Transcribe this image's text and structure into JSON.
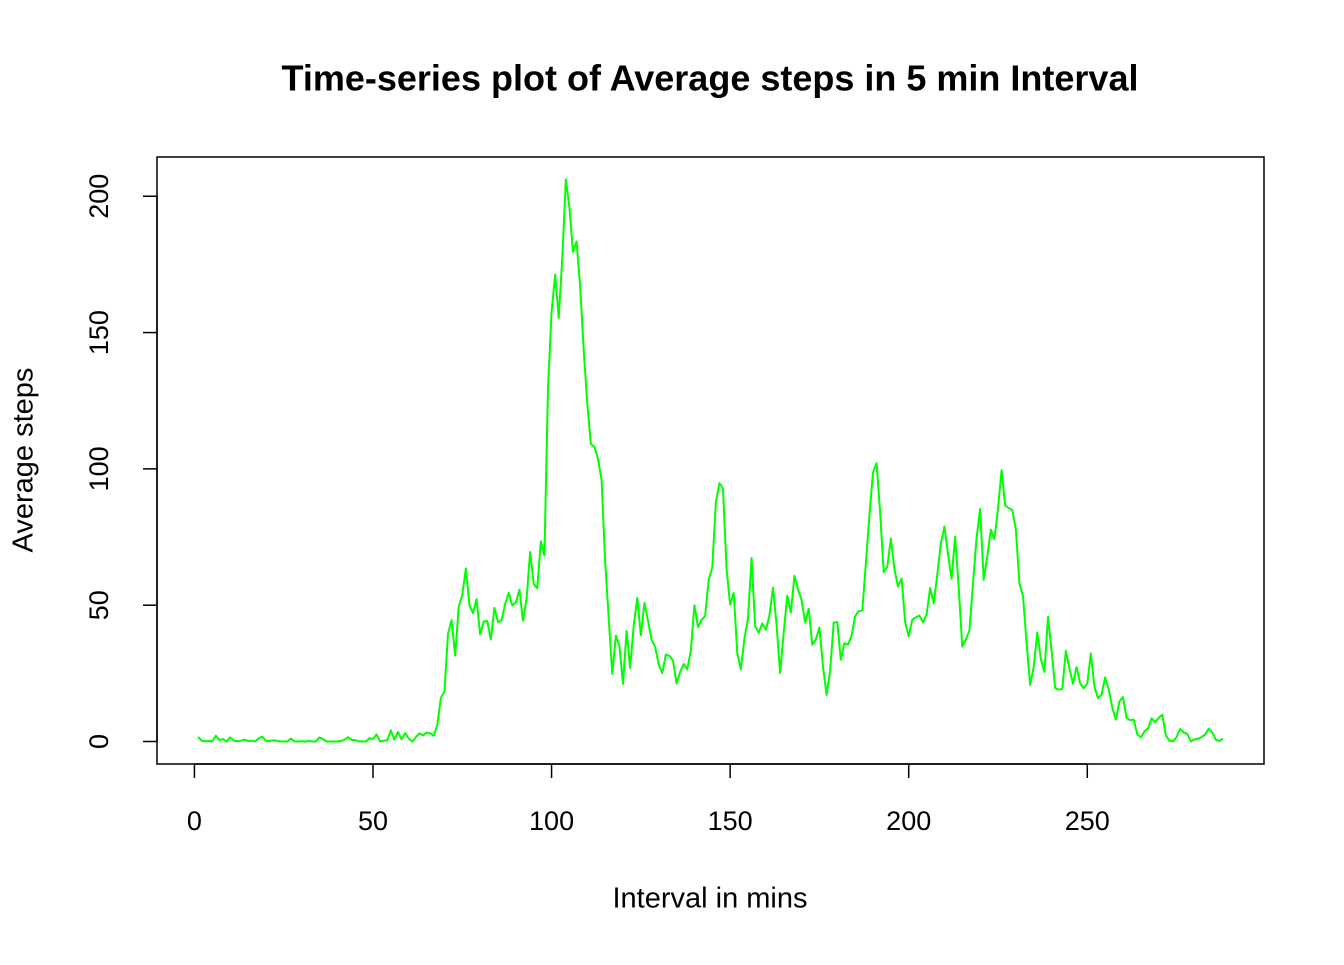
{
  "chart_data": {
    "type": "line",
    "title": "Time-series plot of Average steps in 5 min Interval",
    "x_label": "Interval in mins",
    "y_label": "Average steps",
    "color": "#00ff00",
    "grid": false,
    "xlim": [
      -10.48,
      299.48
    ],
    "ylim": [
      -8.25,
      214.4
    ],
    "xticks": [
      0,
      50,
      100,
      150,
      200,
      250
    ],
    "yticks": [
      0,
      50,
      100,
      150,
      200
    ],
    "x": [
      1,
      2,
      3,
      4,
      5,
      6,
      7,
      8,
      9,
      10,
      11,
      12,
      13,
      14,
      15,
      16,
      17,
      18,
      19,
      20,
      21,
      22,
      23,
      24,
      25,
      26,
      27,
      28,
      29,
      30,
      31,
      32,
      33,
      34,
      35,
      36,
      37,
      38,
      39,
      40,
      41,
      42,
      43,
      44,
      45,
      46,
      47,
      48,
      49,
      50,
      51,
      52,
      53,
      54,
      55,
      56,
      57,
      58,
      59,
      60,
      61,
      62,
      63,
      64,
      65,
      66,
      67,
      68,
      69,
      70,
      71,
      72,
      73,
      74,
      75,
      76,
      77,
      78,
      79,
      80,
      81,
      82,
      83,
      84,
      85,
      86,
      87,
      88,
      89,
      90,
      91,
      92,
      93,
      94,
      95,
      96,
      97,
      98,
      99,
      100,
      101,
      102,
      103,
      104,
      105,
      106,
      107,
      108,
      109,
      110,
      111,
      112,
      113,
      114,
      115,
      116,
      117,
      118,
      119,
      120,
      121,
      122,
      123,
      124,
      125,
      126,
      127,
      128,
      129,
      130,
      131,
      132,
      133,
      134,
      135,
      136,
      137,
      138,
      139,
      140,
      141,
      142,
      143,
      144,
      145,
      146,
      147,
      148,
      149,
      150,
      151,
      152,
      153,
      154,
      155,
      156,
      157,
      158,
      159,
      160,
      161,
      162,
      163,
      164,
      165,
      166,
      167,
      168,
      169,
      170,
      171,
      172,
      173,
      174,
      175,
      176,
      177,
      178,
      179,
      180,
      181,
      182,
      183,
      184,
      185,
      186,
      187,
      188,
      189,
      190,
      191,
      192,
      193,
      194,
      195,
      196,
      197,
      198,
      199,
      200,
      201,
      202,
      203,
      204,
      205,
      206,
      207,
      208,
      209,
      210,
      211,
      212,
      213,
      214,
      215,
      216,
      217,
      218,
      219,
      220,
      221,
      222,
      223,
      224,
      225,
      226,
      227,
      228,
      229,
      230,
      231,
      232,
      233,
      234,
      235,
      236,
      237,
      238,
      239,
      240,
      241,
      242,
      243,
      244,
      245,
      246,
      247,
      248,
      249,
      250,
      251,
      252,
      253,
      254,
      255,
      256,
      257,
      258,
      259,
      260,
      261,
      262,
      263,
      264,
      265,
      266,
      267,
      268,
      269,
      270,
      271,
      272,
      273,
      274,
      275,
      276,
      277,
      278,
      279,
      280,
      281,
      282,
      283,
      284,
      285,
      286,
      287,
      288
    ],
    "values": [
      1.7,
      0.3,
      0.1,
      0.2,
      0.1,
      2.1,
      0.5,
      0.9,
      0,
      1.5,
      0.3,
      0.1,
      0.3,
      0.7,
      0.2,
      0.3,
      0,
      1.1,
      1.8,
      0.2,
      0.2,
      0.4,
      0.3,
      0,
      0,
      0,
      1.1,
      0,
      0,
      0.1,
      0,
      0.2,
      0,
      0,
      1.5,
      0.9,
      0,
      0,
      0,
      0,
      0.2,
      0.6,
      1.6,
      0.6,
      0.5,
      0.1,
      0,
      0,
      1.2,
      0.9,
      2.6,
      0,
      0.3,
      0.4,
      4.1,
      0.7,
      3.5,
      0.8,
      3.1,
      1.1,
      0,
      1.6,
      3,
      2.2,
      3.3,
      3,
      2.1,
      6.1,
      16,
      18.3,
      39.5,
      44.5,
      31.5,
      49.3,
      53.8,
      63.5,
      50,
      47.1,
      52.2,
      39.3,
      44,
      44.2,
      37.4,
      49,
      43.8,
      44.4,
      50.5,
      54.5,
      49.9,
      51,
      55.7,
      44.3,
      52.3,
      69.5,
      57.8,
      56.2,
      73.4,
      68.2,
      129.4,
      157.5,
      171.2,
      155.4,
      177.3,
      206.2,
      195.9,
      179.6,
      183.4,
      167,
      143.5,
      124,
      109.1,
      108.1,
      103.7,
      96,
      66.2,
      45.2,
      24.8,
      38.8,
      35,
      21.1,
      40.6,
      27,
      42.4,
      52.7,
      38.9,
      50.8,
      44.3,
      37.4,
      34.7,
      28.3,
      25.1,
      31.9,
      31.4,
      29.7,
      21.3,
      25.5,
      28.4,
      26.5,
      33.4,
      50,
      42,
      44.6,
      46,
      59.2,
      63.9,
      87.7,
      94.8,
      92.8,
      63.4,
      50.2,
      54.5,
      32.4,
      26.5,
      37.7,
      45.1,
      67.3,
      42.3,
      39.9,
      43.3,
      41,
      46.2,
      56.4,
      42.8,
      25.1,
      40,
      53.5,
      47.3,
      60.8,
      55.8,
      52,
      43.6,
      48.7,
      35.5,
      37.5,
      41.8,
      27.5,
      17.1,
      26.1,
      43.6,
      43.8,
      30,
      36.1,
      35.5,
      38.8,
      46,
      47.8,
      48.1,
      65.3,
      82.9,
      98.7,
      102.1,
      84,
      62.1,
      64.1,
      74.5,
      63.2,
      56.9,
      59.8,
      43.9,
      38.6,
      44.7,
      45.5,
      46.2,
      43.7,
      46.6,
      56.3,
      50.7,
      61.2,
      72.7,
      78.9,
      68.9,
      59.7,
      75.1,
      56.5,
      34.8,
      37.5,
      40.7,
      58,
      74.7,
      85.3,
      59.3,
      67.8,
      77.7,
      74.2,
      85.3,
      99.5,
      86.6,
      85.6,
      84.9,
      77.8,
      58,
      53.4,
      36.3,
      20.7,
      27.4,
      40,
      30.2,
      25.5,
      45.7,
      33.5,
      19.6,
      19,
      19.3,
      33.3,
      26.8,
      21.2,
      27.3,
      21.3,
      19.5,
      21.3,
      32.3,
      20.2,
      15.9,
      17.2,
      23.5,
      19.2,
      12.5,
      8,
      14.7,
      16.3,
      8.7,
      7.8,
      8.1,
      2.6,
      1.5,
      3.7,
      4.8,
      8.5,
      7.1,
      8.7,
      9.8,
      2.2,
      0.3,
      0.1,
      1.6,
      4.6,
      3.3,
      2.8,
      0,
      0.8,
      1,
      1.6,
      2.6,
      4.7,
      3.3,
      0.6,
      0.2,
      1.1
    ]
  }
}
